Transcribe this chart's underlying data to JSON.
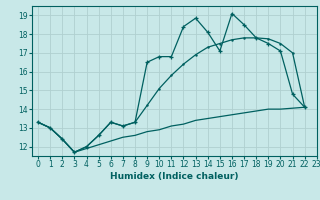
{
  "xlabel": "Humidex (Indice chaleur)",
  "bg_color": "#c8e8e8",
  "grid_color": "#b0d0d0",
  "line_color": "#006060",
  "line1_y": [
    13.3,
    13.0,
    12.4,
    11.7,
    12.0,
    12.6,
    13.3,
    13.1,
    13.3,
    16.5,
    16.8,
    16.8,
    18.4,
    18.85,
    18.1,
    17.1,
    19.1,
    18.5,
    17.8,
    17.5,
    17.1,
    14.8,
    14.1
  ],
  "line2_y": [
    13.3,
    13.0,
    12.4,
    11.7,
    12.0,
    12.6,
    13.3,
    13.1,
    13.3,
    14.2,
    15.1,
    15.8,
    16.4,
    16.9,
    17.3,
    17.5,
    17.7,
    17.8,
    17.8,
    17.75,
    17.5,
    17.0,
    14.1
  ],
  "line3_y": [
    13.3,
    13.0,
    12.4,
    11.7,
    11.9,
    12.1,
    12.3,
    12.5,
    12.6,
    12.8,
    12.9,
    13.1,
    13.2,
    13.4,
    13.5,
    13.6,
    13.7,
    13.8,
    13.9,
    14.0,
    14.0,
    14.05,
    14.1
  ],
  "ylim": [
    11.5,
    19.5
  ],
  "xlim": [
    -0.5,
    23.0
  ],
  "yticks": [
    12,
    13,
    14,
    15,
    16,
    17,
    18,
    19
  ],
  "xticks": [
    0,
    1,
    2,
    3,
    4,
    5,
    6,
    7,
    8,
    9,
    10,
    11,
    12,
    13,
    14,
    15,
    16,
    17,
    18,
    19,
    20,
    21,
    22,
    23
  ]
}
